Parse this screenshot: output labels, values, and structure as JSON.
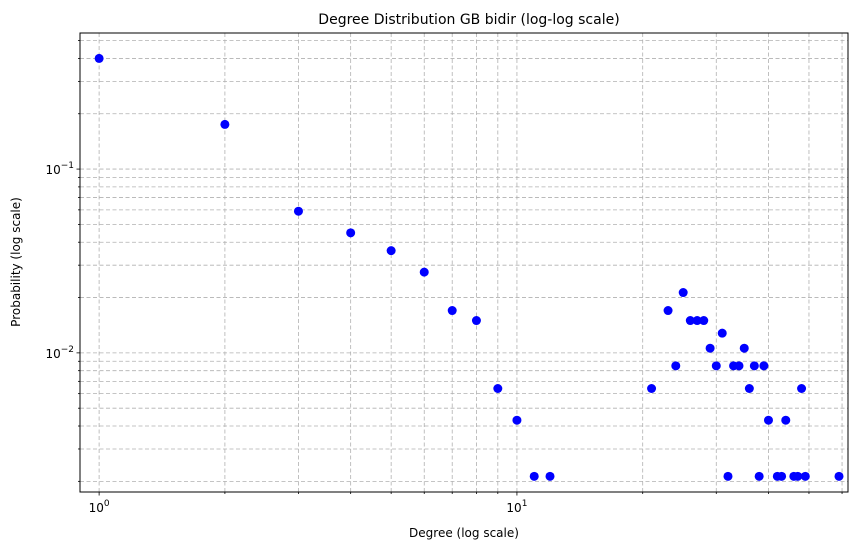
{
  "chart_data": {
    "type": "scatter",
    "title": "Degree Distribution GB bidir (log-log scale)",
    "xlabel": "Degree (log scale)",
    "ylabel": "Probability (log scale)",
    "xscale": "log",
    "yscale": "log",
    "xlim": [
      0.9,
      62
    ],
    "ylim": [
      0.00175,
      0.55
    ],
    "grid": true,
    "marker_color": "#0000ff",
    "x_major_ticks": [
      1,
      10
    ],
    "x_tick_labels": [
      {
        "base": "10",
        "exp": "0"
      },
      {
        "base": "10",
        "exp": "1"
      }
    ],
    "y_major_ticks": [
      0.01,
      0.1
    ],
    "y_tick_labels": [
      {
        "base": "10",
        "exp": "−2"
      },
      {
        "base": "10",
        "exp": "−1"
      }
    ],
    "x": [
      1,
      2,
      3,
      4,
      5,
      6,
      7,
      8,
      9,
      10,
      11,
      12,
      21,
      23,
      24,
      25,
      26,
      27,
      28,
      29,
      30,
      31,
      32,
      33,
      34,
      35,
      36,
      37,
      38,
      39,
      40,
      42,
      43,
      44,
      46,
      47,
      48,
      49,
      59
    ],
    "y": [
      0.4,
      0.175,
      0.059,
      0.045,
      0.036,
      0.0275,
      0.017,
      0.015,
      0.0064,
      0.0043,
      0.00213,
      0.00213,
      0.0064,
      0.017,
      0.0085,
      0.0213,
      0.015,
      0.015,
      0.015,
      0.0106,
      0.0085,
      0.0128,
      0.00213,
      0.0085,
      0.0085,
      0.0106,
      0.0064,
      0.0085,
      0.00213,
      0.0085,
      0.0043,
      0.00213,
      0.00213,
      0.0043,
      0.00213,
      0.00213,
      0.0064,
      0.00213,
      0.00213
    ]
  }
}
